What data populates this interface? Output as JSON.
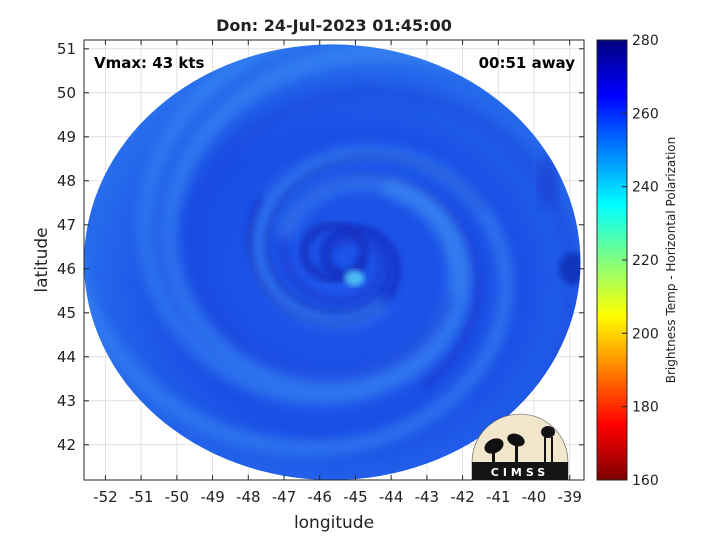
{
  "chart_data": {
    "type": "heatmap",
    "title": "Don: 24-Jul-2023 01:45:00",
    "xlabel": "longitude",
    "ylabel": "latitude",
    "xlim": [
      -52.6,
      -38.6
    ],
    "ylim": [
      41.2,
      51.2
    ],
    "x_ticks": [
      -52,
      -51,
      -50,
      -49,
      -48,
      -47,
      -46,
      -45,
      -44,
      -43,
      -42,
      -41,
      -40,
      -39
    ],
    "y_ticks": [
      42,
      43,
      44,
      45,
      46,
      47,
      48,
      49,
      50,
      51
    ],
    "grid": true,
    "annotations": {
      "vmax": "Vmax: 43 kts",
      "time_away": "00:51 away"
    },
    "storm_center": {
      "lon": -45.2,
      "lat": 46.2
    },
    "swath_extent": {
      "lon": [
        -52.6,
        -38.7
      ],
      "lat": [
        41.2,
        51.1
      ]
    },
    "colorbar": {
      "label": "Brightness Temp - Horizontal Polarization",
      "range": [
        160,
        280
      ],
      "ticks": [
        160,
        180,
        200,
        220,
        240,
        260,
        280
      ],
      "colormap": [
        "#7f0000",
        "#ff0000",
        "#ff8000",
        "#ffff00",
        "#80ff80",
        "#00ffff",
        "#0080ff",
        "#0000ff",
        "#00007f"
      ]
    },
    "value_range_observed": [
      235,
      275
    ]
  },
  "logo": {
    "text": "CIMSS"
  }
}
